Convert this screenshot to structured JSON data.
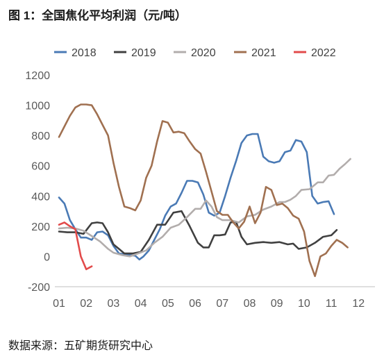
{
  "figure": {
    "label": "图 1：",
    "title": "全国焦化平均利润（元/吨）",
    "source": "数据来源：五矿期货研究中心"
  },
  "chart_data": {
    "type": "line",
    "title": "全国焦化平均利润（元/吨）",
    "xlabel": "",
    "ylabel": "",
    "ylim": [
      -200,
      1200
    ],
    "yticks": [
      -200,
      0,
      200,
      400,
      600,
      800,
      1000,
      1200
    ],
    "yticklabels": [
      "-200",
      "0",
      "200",
      "400",
      "600",
      "800",
      "1000",
      "1200"
    ],
    "xlim": [
      1,
      12.4
    ],
    "xticks": [
      1,
      2,
      3,
      4,
      5,
      6,
      7,
      8,
      9,
      10,
      11,
      12
    ],
    "xticklabels": [
      "01",
      "02",
      "03",
      "04",
      "05",
      "06",
      "07",
      "08",
      "09",
      "10",
      "11",
      "12"
    ],
    "grid": false,
    "legend_position": "top",
    "series": [
      {
        "name": "2018",
        "color": "#4a7ab5",
        "points": [
          [
            1.0,
            390
          ],
          [
            1.2,
            350
          ],
          [
            1.4,
            240
          ],
          [
            1.6,
            180
          ],
          [
            1.8,
            125
          ],
          [
            2.0,
            125
          ],
          [
            2.2,
            110
          ],
          [
            2.4,
            160
          ],
          [
            2.6,
            165
          ],
          [
            2.8,
            140
          ],
          [
            3.0,
            70
          ],
          [
            3.2,
            20
          ],
          [
            3.4,
            15
          ],
          [
            3.6,
            10
          ],
          [
            3.8,
            5
          ],
          [
            3.95,
            -20
          ],
          [
            4.1,
            0
          ],
          [
            4.3,
            40
          ],
          [
            4.5,
            110
          ],
          [
            4.7,
            180
          ],
          [
            4.9,
            270
          ],
          [
            5.1,
            330
          ],
          [
            5.3,
            350
          ],
          [
            5.5,
            420
          ],
          [
            5.7,
            500
          ],
          [
            5.9,
            500
          ],
          [
            6.1,
            490
          ],
          [
            6.3,
            410
          ],
          [
            6.5,
            290
          ],
          [
            6.7,
            270
          ],
          [
            6.9,
            290
          ],
          [
            7.1,
            400
          ],
          [
            7.3,
            520
          ],
          [
            7.5,
            630
          ],
          [
            7.7,
            750
          ],
          [
            7.9,
            800
          ],
          [
            8.1,
            810
          ],
          [
            8.3,
            810
          ],
          [
            8.5,
            660
          ],
          [
            8.7,
            630
          ],
          [
            8.9,
            620
          ],
          [
            9.1,
            630
          ],
          [
            9.3,
            690
          ],
          [
            9.5,
            700
          ],
          [
            9.7,
            770
          ],
          [
            9.9,
            760
          ],
          [
            10.1,
            690
          ],
          [
            10.3,
            400
          ],
          [
            10.5,
            350
          ],
          [
            10.7,
            360
          ],
          [
            10.9,
            365
          ],
          [
            11.1,
            280
          ]
        ]
      },
      {
        "name": "2019",
        "color": "#404040",
        "points": [
          [
            1.0,
            165
          ],
          [
            1.3,
            160
          ],
          [
            1.6,
            160
          ],
          [
            1.9,
            150
          ],
          [
            2.2,
            220
          ],
          [
            2.4,
            225
          ],
          [
            2.6,
            220
          ],
          [
            2.8,
            160
          ],
          [
            3.0,
            80
          ],
          [
            3.2,
            50
          ],
          [
            3.4,
            20
          ],
          [
            3.7,
            20
          ],
          [
            4.0,
            30
          ],
          [
            4.3,
            110
          ],
          [
            4.6,
            210
          ],
          [
            4.9,
            210
          ],
          [
            5.2,
            290
          ],
          [
            5.5,
            300
          ],
          [
            5.8,
            200
          ],
          [
            6.1,
            90
          ],
          [
            6.3,
            60
          ],
          [
            6.5,
            60
          ],
          [
            6.7,
            140
          ],
          [
            6.9,
            140
          ],
          [
            7.1,
            145
          ],
          [
            7.3,
            225
          ],
          [
            7.5,
            230
          ],
          [
            7.7,
            130
          ],
          [
            7.9,
            80
          ],
          [
            8.2,
            90
          ],
          [
            8.5,
            95
          ],
          [
            8.8,
            90
          ],
          [
            9.1,
            95
          ],
          [
            9.4,
            80
          ],
          [
            9.6,
            85
          ],
          [
            9.8,
            50
          ],
          [
            10.1,
            60
          ],
          [
            10.4,
            90
          ],
          [
            10.7,
            130
          ],
          [
            11.0,
            140
          ],
          [
            11.2,
            175
          ]
        ]
      },
      {
        "name": "2020",
        "color": "#b2adac",
        "points": [
          [
            1.0,
            185
          ],
          [
            1.3,
            190
          ],
          [
            1.6,
            185
          ],
          [
            1.9,
            170
          ],
          [
            2.2,
            135
          ],
          [
            2.5,
            100
          ],
          [
            2.8,
            50
          ],
          [
            3.0,
            25
          ],
          [
            3.3,
            10
          ],
          [
            3.6,
            0
          ],
          [
            3.9,
            20
          ],
          [
            4.2,
            40
          ],
          [
            4.5,
            90
          ],
          [
            4.8,
            130
          ],
          [
            5.1,
            190
          ],
          [
            5.4,
            210
          ],
          [
            5.7,
            260
          ],
          [
            6.0,
            315
          ],
          [
            6.2,
            315
          ],
          [
            6.4,
            370
          ],
          [
            6.6,
            330
          ],
          [
            6.8,
            260
          ],
          [
            7.0,
            240
          ],
          [
            7.3,
            240
          ],
          [
            7.6,
            225
          ],
          [
            7.9,
            265
          ],
          [
            8.2,
            275
          ],
          [
            8.5,
            310
          ],
          [
            8.8,
            330
          ],
          [
            9.1,
            360
          ],
          [
            9.3,
            360
          ],
          [
            9.5,
            375
          ],
          [
            9.7,
            400
          ],
          [
            9.9,
            440
          ],
          [
            10.2,
            445
          ],
          [
            10.5,
            490
          ],
          [
            10.7,
            490
          ],
          [
            10.9,
            535
          ],
          [
            11.1,
            540
          ],
          [
            11.3,
            580
          ],
          [
            11.5,
            610
          ],
          [
            11.7,
            645
          ]
        ]
      },
      {
        "name": "2021",
        "color": "#a07050",
        "points": [
          [
            1.0,
            790
          ],
          [
            1.2,
            860
          ],
          [
            1.4,
            930
          ],
          [
            1.6,
            985
          ],
          [
            1.8,
            1005
          ],
          [
            2.0,
            1005
          ],
          [
            2.2,
            1000
          ],
          [
            2.4,
            940
          ],
          [
            2.6,
            870
          ],
          [
            2.8,
            800
          ],
          [
            3.0,
            620
          ],
          [
            3.2,
            460
          ],
          [
            3.4,
            330
          ],
          [
            3.6,
            320
          ],
          [
            3.8,
            305
          ],
          [
            4.0,
            370
          ],
          [
            4.2,
            520
          ],
          [
            4.4,
            600
          ],
          [
            4.6,
            760
          ],
          [
            4.8,
            895
          ],
          [
            5.0,
            885
          ],
          [
            5.2,
            820
          ],
          [
            5.4,
            825
          ],
          [
            5.6,
            815
          ],
          [
            5.8,
            760
          ],
          [
            6.0,
            710
          ],
          [
            6.2,
            680
          ],
          [
            6.4,
            560
          ],
          [
            6.6,
            430
          ],
          [
            6.8,
            300
          ],
          [
            7.0,
            275
          ],
          [
            7.2,
            275
          ],
          [
            7.4,
            225
          ],
          [
            7.6,
            185
          ],
          [
            7.8,
            230
          ],
          [
            8.0,
            330
          ],
          [
            8.2,
            220
          ],
          [
            8.4,
            290
          ],
          [
            8.6,
            460
          ],
          [
            8.8,
            440
          ],
          [
            9.0,
            340
          ],
          [
            9.2,
            350
          ],
          [
            9.4,
            320
          ],
          [
            9.6,
            270
          ],
          [
            9.8,
            250
          ],
          [
            10.0,
            165
          ],
          [
            10.2,
            -30
          ],
          [
            10.4,
            -130
          ],
          [
            10.6,
            0
          ],
          [
            10.8,
            20
          ],
          [
            11.0,
            70
          ],
          [
            11.2,
            110
          ],
          [
            11.4,
            90
          ],
          [
            11.6,
            60
          ]
        ]
      },
      {
        "name": "2022",
        "color": "#e24b4b",
        "points": [
          [
            1.0,
            210
          ],
          [
            1.2,
            225
          ],
          [
            1.4,
            200
          ],
          [
            1.6,
            180
          ],
          [
            1.8,
            0
          ],
          [
            2.0,
            -85
          ],
          [
            2.2,
            -65
          ]
        ]
      }
    ]
  }
}
